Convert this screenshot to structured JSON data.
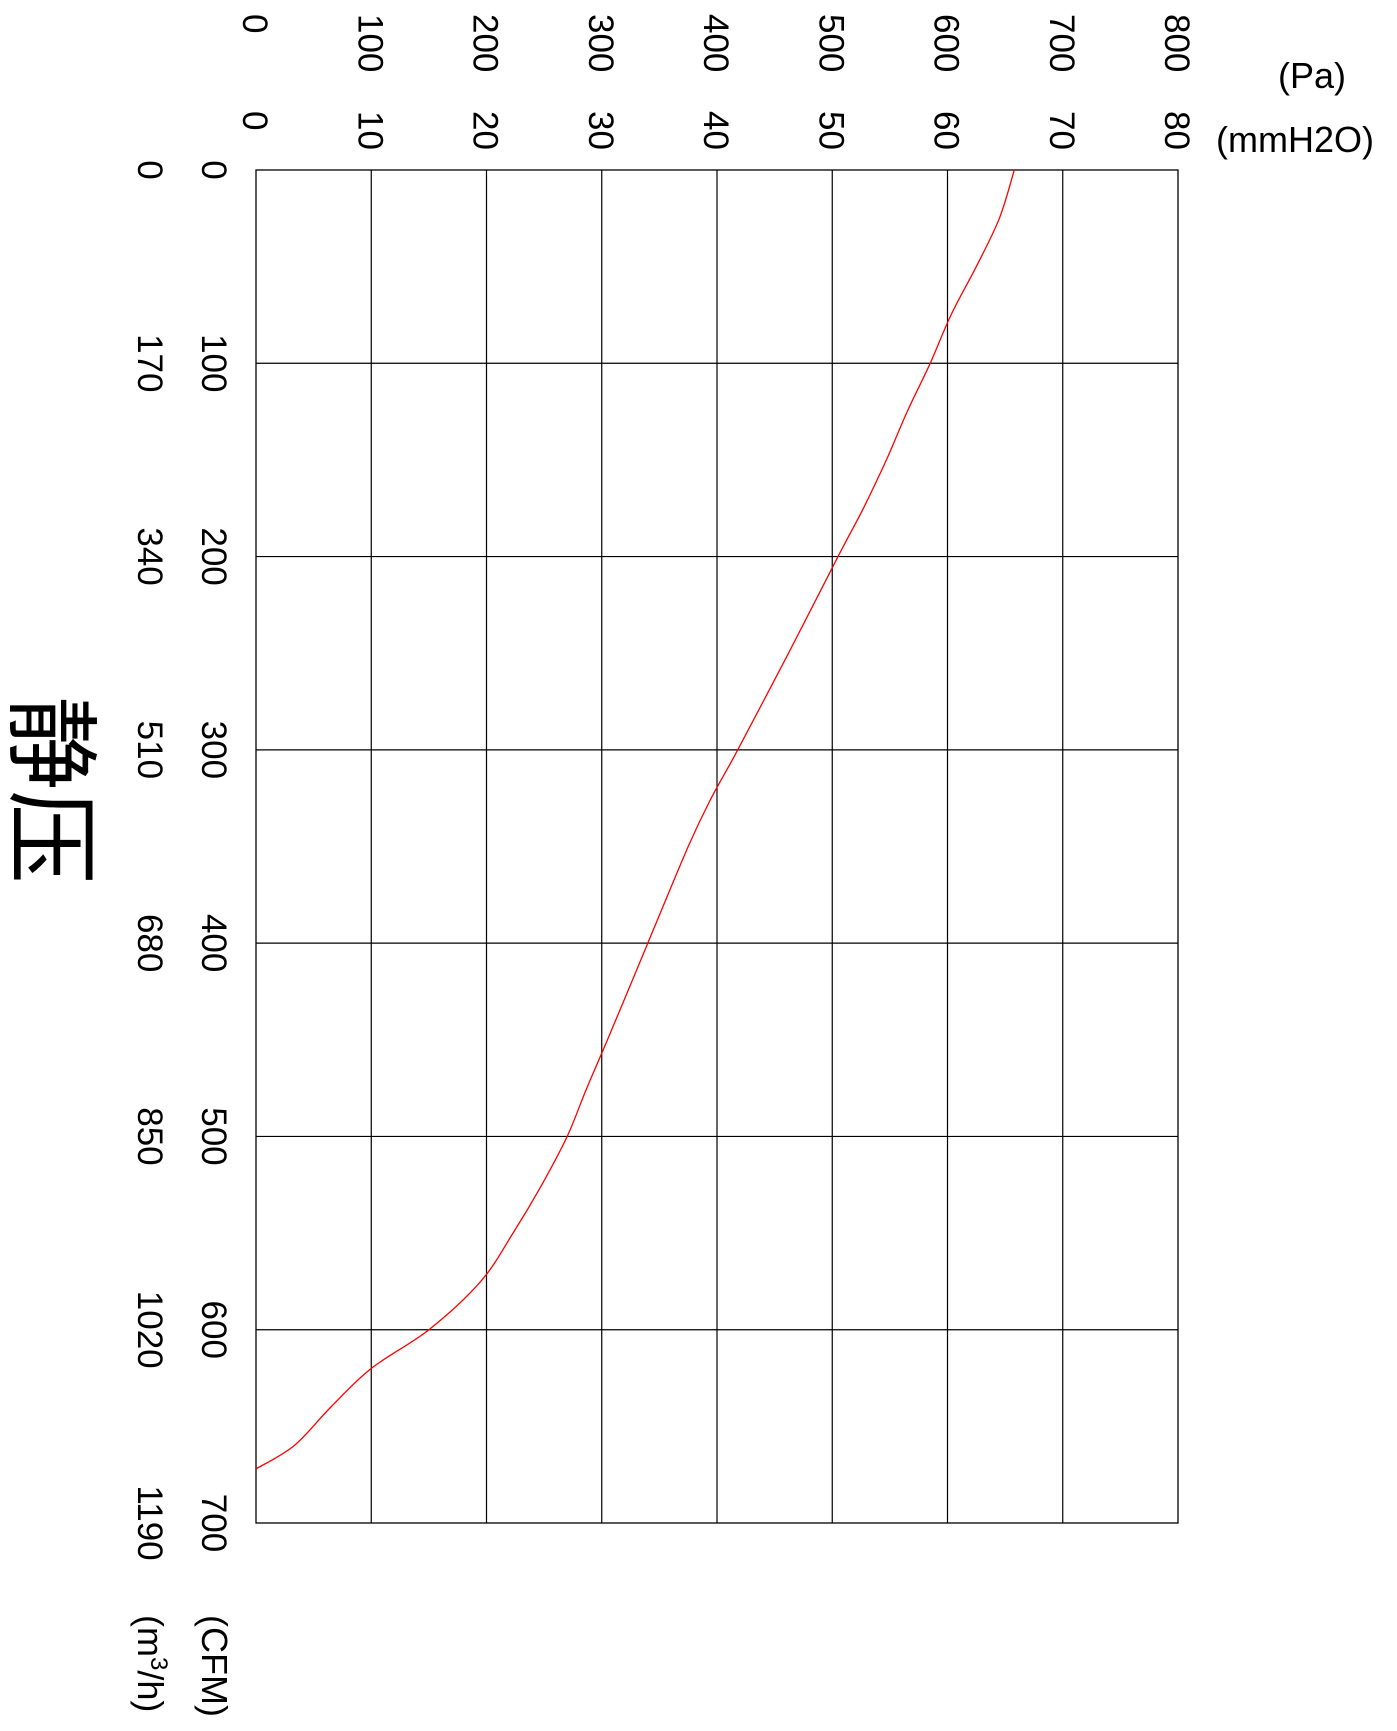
{
  "chart_data": {
    "type": "line",
    "title": "静压",
    "pressure_axis": {
      "primary_unit": "(Pa)",
      "secondary_unit": "(mmH2O)",
      "range": [
        0,
        800
      ],
      "ticks": [
        {
          "pa": 0,
          "primary": "0",
          "secondary": "0"
        },
        {
          "pa": 100,
          "primary": "100",
          "secondary": "10"
        },
        {
          "pa": 200,
          "primary": "200",
          "secondary": "20"
        },
        {
          "pa": 300,
          "primary": "300",
          "secondary": "30"
        },
        {
          "pa": 400,
          "primary": "400",
          "secondary": "40"
        },
        {
          "pa": 500,
          "primary": "500",
          "secondary": "50"
        },
        {
          "pa": 600,
          "primary": "600",
          "secondary": "60"
        },
        {
          "pa": 700,
          "primary": "700",
          "secondary": "70"
        },
        {
          "pa": 800,
          "primary": "800",
          "secondary": "80"
        }
      ]
    },
    "flow_axis": {
      "primary_unit": "(CFM)",
      "secondary_unit_base": "(m",
      "secondary_unit_sup": "3",
      "secondary_unit_tail": "/h)",
      "range": [
        0,
        700
      ],
      "ticks": [
        {
          "cfm": 0,
          "primary": "0",
          "secondary": "0"
        },
        {
          "cfm": 100,
          "primary": "100",
          "secondary": "170"
        },
        {
          "cfm": 200,
          "primary": "200",
          "secondary": "340"
        },
        {
          "cfm": 300,
          "primary": "300",
          "secondary": "510"
        },
        {
          "cfm": 400,
          "primary": "400",
          "secondary": "680"
        },
        {
          "cfm": 500,
          "primary": "500",
          "secondary": "850"
        },
        {
          "cfm": 600,
          "primary": "600",
          "secondary": "1020"
        },
        {
          "cfm": 700,
          "primary": "700",
          "secondary": "1190"
        }
      ]
    },
    "grid": true,
    "series": [
      {
        "color": "#ff0000",
        "points": [
          {
            "cfm": 0,
            "pa": 658
          },
          {
            "cfm": 25,
            "pa": 645
          },
          {
            "cfm": 50,
            "pa": 625
          },
          {
            "cfm": 75,
            "pa": 603
          },
          {
            "cfm": 100,
            "pa": 585
          },
          {
            "cfm": 125,
            "pa": 565
          },
          {
            "cfm": 150,
            "pa": 547
          },
          {
            "cfm": 175,
            "pa": 527
          },
          {
            "cfm": 200,
            "pa": 505
          },
          {
            "cfm": 250,
            "pa": 462
          },
          {
            "cfm": 300,
            "pa": 418
          },
          {
            "cfm": 325,
            "pa": 395
          },
          {
            "cfm": 350,
            "pa": 375
          },
          {
            "cfm": 400,
            "pa": 340
          },
          {
            "cfm": 450,
            "pa": 305
          },
          {
            "cfm": 475,
            "pa": 287
          },
          {
            "cfm": 500,
            "pa": 270
          },
          {
            "cfm": 525,
            "pa": 248
          },
          {
            "cfm": 550,
            "pa": 223
          },
          {
            "cfm": 575,
            "pa": 195
          },
          {
            "cfm": 600,
            "pa": 150
          },
          {
            "cfm": 620,
            "pa": 100
          },
          {
            "cfm": 640,
            "pa": 65
          },
          {
            "cfm": 660,
            "pa": 33
          },
          {
            "cfm": 672,
            "pa": 0
          }
        ]
      }
    ]
  }
}
